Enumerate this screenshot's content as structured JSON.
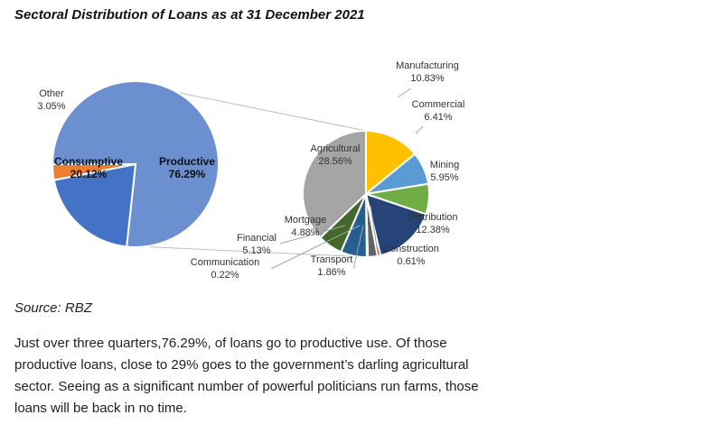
{
  "title": "Sectoral Distribution of Loans as at 31 December 2021",
  "source": "Source: RBZ",
  "paragraph": "Just over three quarters,76.29%, of loans go to productive use. Of those productive loans, close to 29% goes to the government’s darling agricultural sector. Seeing as a significant number of powerful politicians run farms, those loans will be back in no time.",
  "chart_data": [
    {
      "type": "pie",
      "title": "",
      "slices": [
        {
          "label": "Productive",
          "value": 76.29,
          "display": "76.29%",
          "color": "#6b8fcf"
        },
        {
          "label": "Consumptive",
          "value": 20.12,
          "display": "20.12%",
          "color": "#4472c4"
        },
        {
          "label": "Other",
          "value": 3.05,
          "display": "3.05%",
          "color": "#ed7d31"
        }
      ]
    },
    {
      "type": "pie",
      "title": "",
      "slices": [
        {
          "label": "Manufacturing",
          "value": 10.83,
          "display": "10.83%",
          "color": "#ffc000"
        },
        {
          "label": "Commercial",
          "value": 6.41,
          "display": "6.41%",
          "color": "#5b9bd5"
        },
        {
          "label": "Mining",
          "value": 5.95,
          "display": "5.95%",
          "color": "#70ad47"
        },
        {
          "label": "Distribution",
          "value": 12.38,
          "display": "12.38%",
          "color": "#264478"
        },
        {
          "label": "Construction",
          "value": 0.61,
          "display": "0.61%",
          "color": "#9e480e"
        },
        {
          "label": "Transport",
          "value": 1.86,
          "display": "1.86%",
          "color": "#636363"
        },
        {
          "label": "Communication",
          "value": 0.22,
          "display": "0.22%",
          "color": "#997300"
        },
        {
          "label": "Financial",
          "value": 5.13,
          "display": "5.13%",
          "color": "#255e91"
        },
        {
          "label": "Mortgage",
          "value": 4.88,
          "display": "4.88%",
          "color": "#43682b"
        },
        {
          "label": "Agricultural",
          "value": 28.56,
          "display": "28.56%",
          "color": "#a5a5a5"
        }
      ]
    }
  ]
}
